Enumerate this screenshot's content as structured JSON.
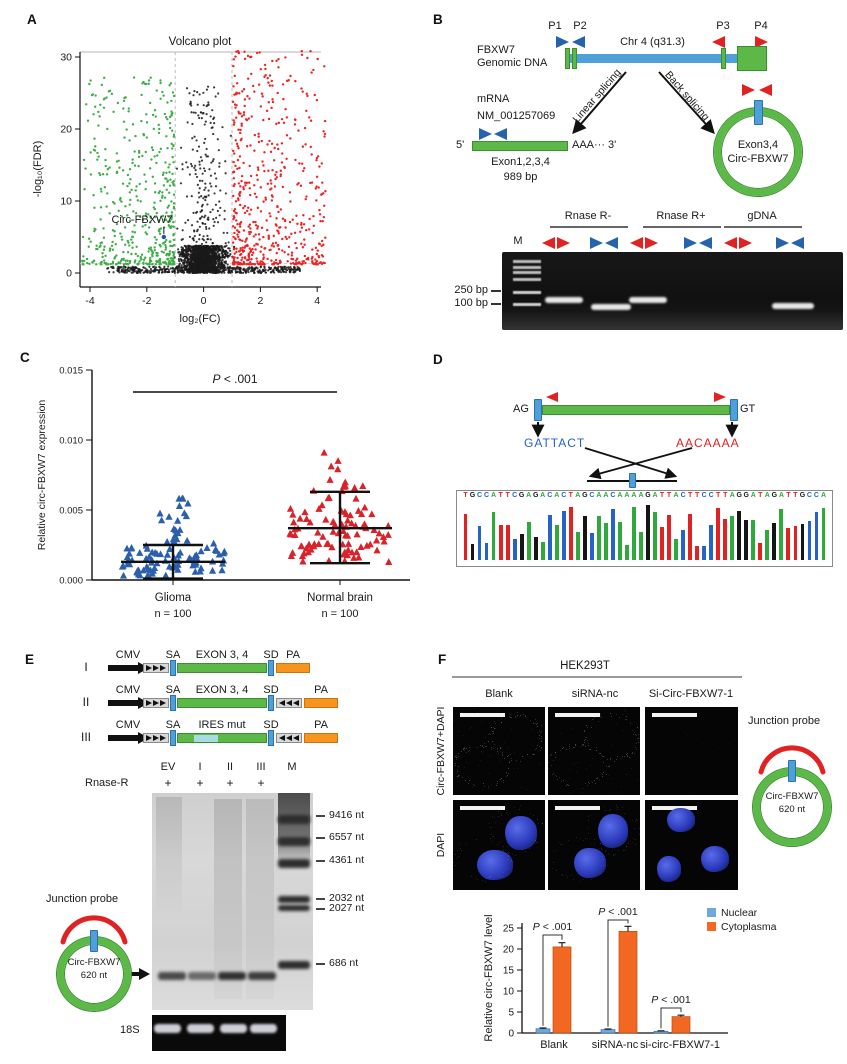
{
  "colors": {
    "green": "#5cb947",
    "green_dark": "#3a8f2f",
    "blue_bar": "#4f9fd8",
    "blue_bar_dark": "#2b72ad",
    "primer_blue": "#2563ad",
    "primer_red": "#e02222",
    "orange": "#f7941d",
    "orange_dark": "#c77414",
    "ires": "#a8dce4",
    "volcano_green": "#3fae49",
    "volcano_red": "#ee2324",
    "volcano_blue": "#2053a8",
    "scatter_blue": "#2b5fac",
    "scatter_red": "#d9232a",
    "bar_nuclear": "#6fa8dc",
    "bar_cytoplasma": "#f26822",
    "base_A": "#2fa83c",
    "base_T": "#e02222",
    "base_G": "#151515",
    "base_C": "#2563c9",
    "dapi": "#3c4ed8"
  },
  "panelA": {
    "label": "A",
    "title": "Volcano plot",
    "xlabel": "log₂(FC)",
    "ylabel": "-log₁₀(FDR)",
    "xticks": [
      "-4",
      "-2",
      "0",
      "2",
      "4"
    ],
    "yticks": [
      "0",
      "10",
      "20",
      "30"
    ],
    "annotation": "Circ-FBXW7"
  },
  "panelB": {
    "label": "B",
    "gene": "FBXW7",
    "gene2": "Genomic DNA",
    "chr": "Chr 4 (q31.3)",
    "p1": "P1",
    "p2": "P2",
    "p3": "P3",
    "p4": "P4",
    "linear": "Linear splicing",
    "back": "Back splicing",
    "mrna": "mRNA",
    "nm": "NM_001257069",
    "five": "5'",
    "polya": "AAA··· 3'",
    "exons": "Exon1,2,3,4",
    "bp": "989 bp",
    "circ1": "Exon3,4",
    "circ2": "Circ-FBXW7",
    "gel": {
      "m": "M",
      "groups": [
        "Rnase R-",
        "Rnase R+",
        "gDNA"
      ],
      "sizes": [
        "250 bp",
        "100 bp"
      ]
    }
  },
  "panelC": {
    "label": "C",
    "p": "P < .001",
    "ylabel": "Relative circ-FBXW7 expression",
    "yticks": [
      "0.000",
      "0.005",
      "0.010",
      "0.015"
    ],
    "groups": [
      {
        "name": "Glioma",
        "n": "n = 100"
      },
      {
        "name": "Normal brain",
        "n": "n = 100"
      }
    ]
  },
  "panelD": {
    "label": "D",
    "ag": "AG",
    "gt": "GT",
    "donor": "GATTACT",
    "acceptor": "AACAAAA",
    "sequence": "TGCCATTCGAGACACTAGCAACAAAAGATTACTTCCTTAGGATAGATTGCCA"
  },
  "panelE": {
    "label": "E",
    "rnase": "Rnase-R",
    "plus": "+",
    "lanes": [
      "EV",
      "I",
      "II",
      "III",
      "M"
    ],
    "markers": [
      "9416 nt",
      "6557 nt",
      "4361 nt",
      "2032 nt",
      "2027 nt",
      "686 nt"
    ],
    "junction": "Junction probe",
    "circ1": "Circ-FBXW7",
    "circ2": "620 nt",
    "s18": "18S",
    "rows": [
      {
        "num": "I",
        "cmv": "CMV",
        "sa": "SA",
        "body": "EXON 3, 4",
        "sd": "SD",
        "pa": "PA",
        "rev": false,
        "ires": false
      },
      {
        "num": "II",
        "cmv": "CMV",
        "sa": "SA",
        "body": "EXON 3, 4",
        "sd": "SD",
        "pa": "PA",
        "rev": true,
        "ires": false
      },
      {
        "num": "III",
        "cmv": "CMV",
        "sa": "SA",
        "body": "IRES mut",
        "sd": "SD",
        "pa": "PA",
        "rev": true,
        "ires": true
      }
    ]
  },
  "panelF": {
    "label": "F",
    "cell": "HEK293T",
    "cols": [
      "Blank",
      "siRNA-nc",
      "Si-Circ-FBXW7-1"
    ],
    "row1": "Circ-FBXW7+DAPI",
    "row2": "DAPI",
    "junction": "Junction probe",
    "circ1": "Circ-FBXW7",
    "circ2": "620 nt"
  },
  "chart_data": [
    {
      "type": "scatter",
      "title": "Volcano plot",
      "xlabel": "log2(FC)",
      "ylabel": "-log10(FDR)",
      "xlim": [
        -4.5,
        4.5
      ],
      "ylim": [
        0,
        31
      ],
      "xticks": [
        -4,
        -2,
        0,
        2,
        4
      ],
      "yticks": [
        0,
        10,
        20,
        30
      ],
      "thresholds": {
        "fc": [
          -1,
          1
        ],
        "fdr": 1.3
      },
      "grid": false,
      "series": [
        {
          "name": "downregulated",
          "color": "#3fae49",
          "n": 480
        },
        {
          "name": "non-significant",
          "color": "#1a1a1a",
          "n": 2050
        },
        {
          "name": "upregulated",
          "color": "#ee2324",
          "n": 560
        },
        {
          "name": "Circ-FBXW7",
          "color": "#2053a8",
          "points": [
            [
              -1.4,
              5
            ]
          ]
        }
      ]
    },
    {
      "type": "scatter",
      "ylabel": "Relative circ-FBXW7 expression",
      "ylim": [
        0,
        0.015
      ],
      "yticks": [
        0,
        0.005,
        0.01,
        0.015
      ],
      "p_value": "P < .001",
      "groups": [
        {
          "label": "Glioma",
          "n": 100,
          "mean": 0.0013,
          "err_low": 0.0001,
          "err_high": 0.0025,
          "min": 0.0001,
          "max": 0.0058,
          "color": "#2b5fac",
          "marker": "triangle"
        },
        {
          "label": "Normal brain",
          "n": 100,
          "mean": 0.0037,
          "err_low": 0.0012,
          "err_high": 0.0063,
          "min": 0.0008,
          "max": 0.0118,
          "color": "#d9232a",
          "marker": "triangle"
        }
      ]
    },
    {
      "type": "bar",
      "ylabel": "Relative circ-FBXW7 level",
      "ylim": [
        0,
        25
      ],
      "yticks": [
        0,
        5,
        10,
        15,
        20,
        25
      ],
      "categories": [
        "Blank",
        "siRNA-nc",
        "si-circ-FBXW7-1"
      ],
      "legend_position": "top-right",
      "series": [
        {
          "name": "Nuclear",
          "color": "#6fa8dc",
          "values": [
            1.0,
            0.8,
            0.4
          ],
          "errors": [
            0.2,
            0.15,
            0.12
          ]
        },
        {
          "name": "Cytoplasma",
          "color": "#f26822",
          "values": [
            20.5,
            24.2,
            3.9
          ],
          "errors": [
            1.0,
            1.2,
            0.35
          ]
        }
      ],
      "p_values": [
        "P < .001",
        "P < .001",
        "P < .001"
      ]
    }
  ]
}
